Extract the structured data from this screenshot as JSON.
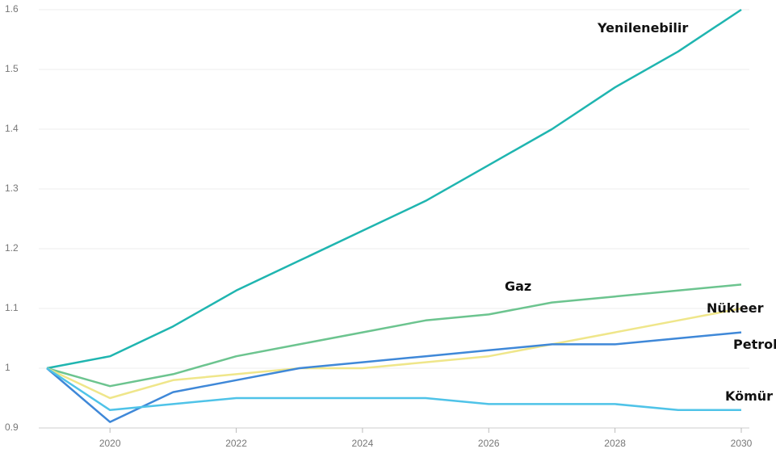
{
  "chart_data": {
    "type": "line",
    "x": [
      2019,
      2020,
      2021,
      2022,
      2023,
      2024,
      2025,
      2026,
      2027,
      2028,
      2029,
      2030
    ],
    "xlim": [
      2019,
      2030
    ],
    "xticks": [
      2020,
      2022,
      2024,
      2026,
      2028,
      2030
    ],
    "ylim": [
      0.9,
      1.6
    ],
    "yticks": [
      0.9,
      1,
      1.1,
      1.2,
      1.3,
      1.4,
      1.5,
      1.6
    ],
    "grid": true,
    "series": [
      {
        "name": "Yenilenebilir",
        "color": "#1fb5b0",
        "values": [
          1,
          1.02,
          1.07,
          1.13,
          1.18,
          1.23,
          1.28,
          1.34,
          1.4,
          1.47,
          1.53,
          1.6
        ]
      },
      {
        "name": "Gaz",
        "color": "#6cc48f",
        "values": [
          1,
          0.97,
          0.99,
          1.02,
          1.04,
          1.06,
          1.08,
          1.09,
          1.11,
          1.12,
          1.13,
          1.14
        ]
      },
      {
        "name": "Nükleer",
        "color": "#efe68a",
        "values": [
          1,
          0.95,
          0.98,
          0.99,
          1.0,
          1.0,
          1.01,
          1.02,
          1.04,
          1.06,
          1.08,
          1.1
        ]
      },
      {
        "name": "Petrol",
        "color": "#3f88d8",
        "values": [
          1,
          0.91,
          0.96,
          0.98,
          1.0,
          1.01,
          1.02,
          1.03,
          1.04,
          1.04,
          1.05,
          1.06
        ]
      },
      {
        "name": "Kömür",
        "color": "#4fc3e8",
        "values": [
          1,
          0.93,
          0.94,
          0.95,
          0.95,
          0.95,
          0.95,
          0.94,
          0.94,
          0.94,
          0.93,
          0.93
        ]
      }
    ]
  }
}
